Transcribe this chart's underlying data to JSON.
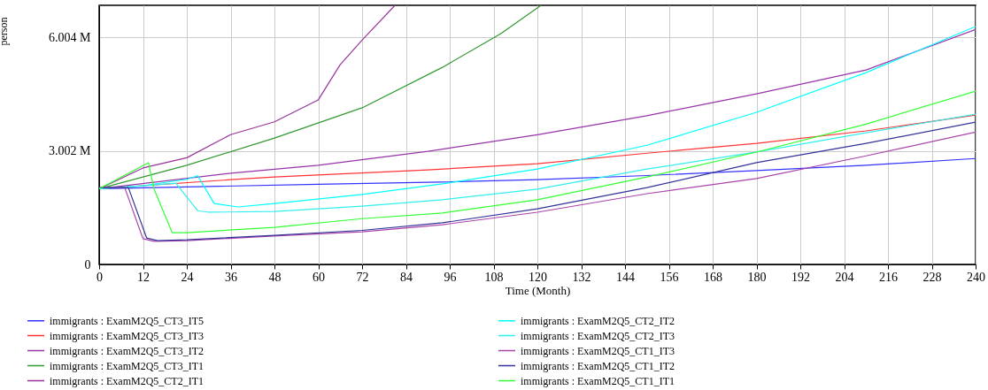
{
  "chart_data": {
    "type": "line",
    "xlabel": "Time (Month)",
    "ylabel": "person",
    "xlim": [
      0,
      240
    ],
    "xticks": [
      0,
      12,
      24,
      36,
      48,
      60,
      72,
      84,
      96,
      108,
      120,
      132,
      144,
      156,
      168,
      180,
      192,
      204,
      216,
      228,
      240
    ],
    "ylim": [
      0,
      6.85
    ],
    "yticks": [
      0,
      {
        "value": 3.002,
        "label": "3.002 M"
      },
      {
        "value": 6.004,
        "label": "6.004 M"
      }
    ],
    "grid": true,
    "legend": "bottom",
    "line_style": "solid",
    "series": [
      {
        "name": "immigrants : ExamM2Q5_CT3_IT5",
        "color": "#3333ff",
        "x": [
          0,
          30,
          60,
          90,
          120,
          150,
          180,
          210,
          240
        ],
        "values": [
          2.0,
          2.06,
          2.12,
          2.17,
          2.24,
          2.35,
          2.48,
          2.62,
          2.8
        ]
      },
      {
        "name": "immigrants : ExamM2Q5_CT3_IT3",
        "color": "#ff3333",
        "x": [
          0,
          36,
          48,
          90,
          120,
          150,
          180,
          210,
          240
        ],
        "values": [
          2.0,
          2.24,
          2.31,
          2.5,
          2.66,
          2.94,
          3.2,
          3.53,
          3.95
        ]
      },
      {
        "name": "immigrants : ExamM2Q5_CT3_IT2",
        "color": "#9933aa",
        "x": [
          0,
          36,
          60,
          90,
          120,
          150,
          180,
          210,
          240
        ],
        "values": [
          2.0,
          2.41,
          2.62,
          2.99,
          3.43,
          3.93,
          4.51,
          5.14,
          6.21
        ]
      },
      {
        "name": "immigrants : ExamM2Q5_CT3_IT1",
        "color": "#339933",
        "x": [
          0,
          12,
          24,
          48,
          72,
          94,
          110,
          121
        ],
        "values": [
          2.0,
          2.31,
          2.62,
          3.34,
          4.14,
          5.21,
          6.1,
          6.85
        ]
      },
      {
        "name": "immigrants : ExamM2Q5_CT2_IT1",
        "color": "#993399",
        "x": [
          0,
          12,
          24,
          36,
          48,
          60,
          66,
          72,
          81
        ],
        "values": [
          2.0,
          2.55,
          2.82,
          3.43,
          3.77,
          4.35,
          5.28,
          5.93,
          6.85
        ]
      },
      {
        "name": "immigrants : ExamM2Q5_CT2_IT2",
        "color": "#00ffff",
        "x": [
          0,
          12,
          24,
          27,
          31.5,
          38,
          48,
          72,
          94,
          120,
          150,
          180,
          210,
          240
        ],
        "values": [
          2.0,
          2.08,
          2.25,
          2.34,
          1.61,
          1.52,
          1.61,
          1.85,
          2.13,
          2.52,
          3.15,
          4.02,
          5.07,
          6.29
        ]
      },
      {
        "name": "immigrants : ExamM2Q5_CT2_IT3",
        "color": "#33eeee",
        "x": [
          0,
          12,
          21,
          27,
          30,
          48,
          72,
          94,
          120,
          150,
          180,
          210,
          240
        ],
        "values": [
          2.0,
          2.08,
          2.15,
          1.42,
          1.38,
          1.4,
          1.54,
          1.71,
          1.99,
          2.52,
          2.97,
          3.48,
          3.97
        ]
      },
      {
        "name": "immigrants : ExamM2Q5_CT1_IT3",
        "color": "#aa44aa",
        "x": [
          0,
          7,
          12,
          15,
          24,
          48,
          72,
          94,
          120,
          150,
          180,
          210,
          240
        ],
        "values": [
          2.03,
          2.03,
          0.68,
          0.61,
          0.63,
          0.75,
          0.86,
          1.05,
          1.38,
          1.87,
          2.27,
          2.87,
          3.5
        ]
      },
      {
        "name": "immigrants : ExamM2Q5_CT1_IT2",
        "color": "#333399",
        "x": [
          0,
          8,
          13,
          16,
          24,
          48,
          72,
          94,
          120,
          150,
          180,
          210,
          240
        ],
        "values": [
          2.03,
          2.03,
          0.7,
          0.63,
          0.65,
          0.77,
          0.9,
          1.1,
          1.47,
          2.03,
          2.69,
          3.2,
          3.76
        ]
      },
      {
        "name": "immigrants : ExamM2Q5_CT1_IT1",
        "color": "#33ff33",
        "x": [
          0,
          13.5,
          15,
          19,
          20,
          24,
          48,
          72,
          94,
          120,
          150,
          180,
          210,
          240
        ],
        "values": [
          2.0,
          2.69,
          2.0,
          1.07,
          0.84,
          0.84,
          0.98,
          1.21,
          1.36,
          1.71,
          2.31,
          2.97,
          3.71,
          4.58
        ]
      }
    ]
  }
}
